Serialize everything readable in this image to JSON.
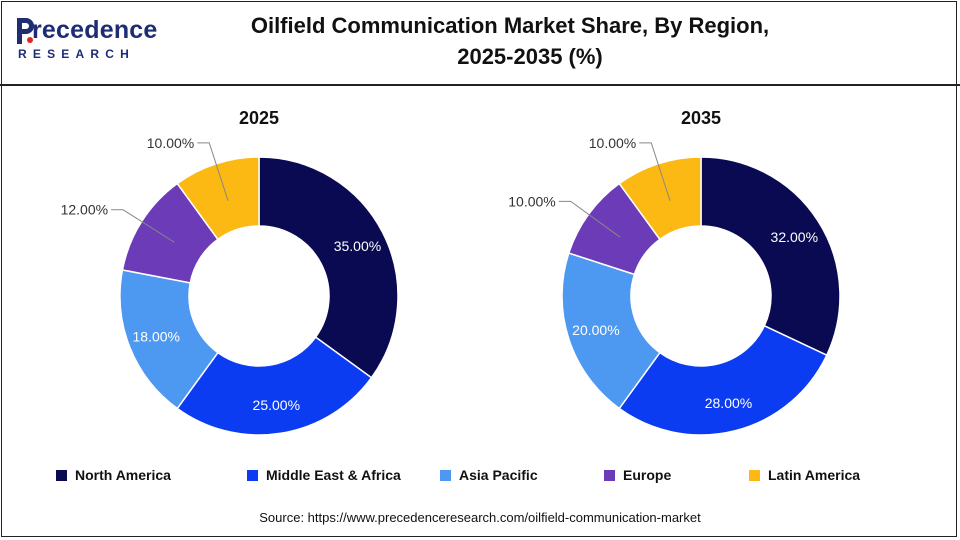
{
  "logo": {
    "word_initial": "P",
    "word_rest": "recedence",
    "sub": "RESEARCH"
  },
  "title": {
    "line1": "Oilfield Communication Market Share, By Region,",
    "line2": "2025-2035 (%)"
  },
  "chart_data": [
    {
      "type": "pie",
      "subtype": "donut",
      "title": "2025",
      "categories": [
        "North America",
        "Middle East & Africa",
        "Asia Pacific",
        "Europe",
        "Latin America"
      ],
      "values": [
        35,
        25,
        18,
        12,
        10
      ],
      "labels": [
        "35.00%",
        "25.00%",
        "18.00%",
        "12.00%",
        "10.00%"
      ],
      "colors": [
        "#0a0a52",
        "#0b3cf2",
        "#4d98f0",
        "#6b3bb8",
        "#fdb913"
      ],
      "label_colors": [
        "#ffffff",
        "#ffffff",
        "#ffffff",
        "#333333",
        "#333333"
      ],
      "outside_labels": [
        false,
        false,
        false,
        true,
        true
      ]
    },
    {
      "type": "pie",
      "subtype": "donut",
      "title": "2035",
      "categories": [
        "North America",
        "Middle East & Africa",
        "Asia Pacific",
        "Europe",
        "Latin America"
      ],
      "values": [
        32,
        28,
        20,
        10,
        10
      ],
      "labels": [
        "32.00%",
        "28.00%",
        "20.00%",
        "10.00%",
        "10.00%"
      ],
      "colors": [
        "#0a0a52",
        "#0b3cf2",
        "#4d98f0",
        "#6b3bb8",
        "#fdb913"
      ],
      "label_colors": [
        "#ffffff",
        "#ffffff",
        "#ffffff",
        "#333333",
        "#333333"
      ],
      "outside_labels": [
        false,
        false,
        false,
        true,
        true
      ]
    }
  ],
  "legend": {
    "placement": "bottom",
    "items": [
      {
        "label": "North America",
        "color": "#0a0a52"
      },
      {
        "label": "Middle East & Africa",
        "color": "#0b3cf2"
      },
      {
        "label": "Asia Pacific",
        "color": "#4d98f0"
      },
      {
        "label": "Europe",
        "color": "#6b3bb8"
      },
      {
        "label": "Latin America",
        "color": "#fdb913"
      }
    ]
  },
  "source": "Source: https://www.precedenceresearch.com/oilfield-communication-market"
}
